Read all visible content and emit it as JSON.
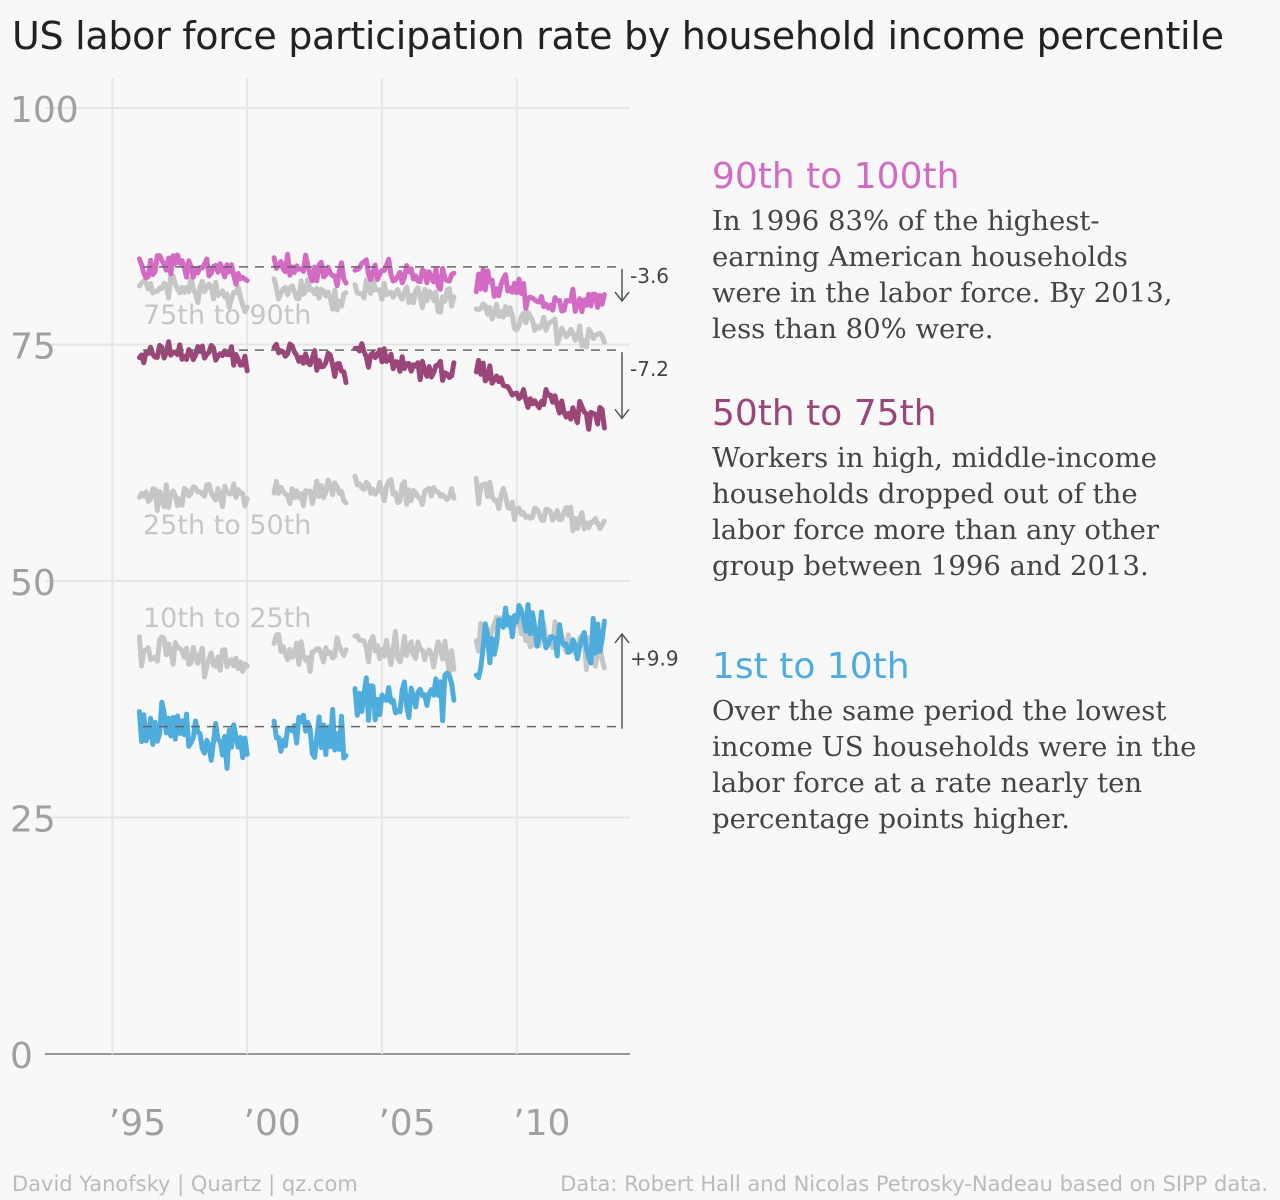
{
  "title": "US labor force participation rate by household income percentile",
  "chart_data": {
    "type": "line",
    "ylim": [
      0,
      100
    ],
    "yticks": [
      0,
      25,
      50,
      75,
      100
    ],
    "xlim": [
      1992.5,
      2014.2
    ],
    "xticks": [
      1995,
      2000,
      2005,
      2010
    ],
    "xtick_labels": [
      "’95",
      "’00",
      "’05",
      "’10"
    ],
    "grid": true,
    "colors": {
      "p90_100": "#d36bc4",
      "p50_75": "#9b4679",
      "p1_10": "#4fadde",
      "other": "#c6c6c6"
    },
    "segments": [
      [
        1996.0,
        2000.0
      ],
      [
        2001.0,
        2003.7
      ],
      [
        2004.0,
        2007.7
      ],
      [
        2008.5,
        2013.3
      ]
    ],
    "series": [
      {
        "key": "p90_100",
        "highlight": true,
        "color": "#d36bc4",
        "points": [
          [
            1996.0,
            83.2
          ],
          [
            1997.0,
            83.4
          ],
          [
            1998.0,
            82.8
          ],
          [
            1999.0,
            83.0
          ],
          [
            2000.0,
            81.5
          ],
          [
            2001.0,
            83.8
          ],
          [
            2002.0,
            83.1
          ],
          [
            2003.0,
            82.6
          ],
          [
            2003.7,
            82.0
          ],
          [
            2004.0,
            83.2
          ],
          [
            2005.0,
            83.0
          ],
          [
            2006.0,
            82.3
          ],
          [
            2007.0,
            81.8
          ],
          [
            2007.7,
            82.8
          ],
          [
            2008.5,
            81.8
          ],
          [
            2009.5,
            81.3
          ],
          [
            2010.5,
            80.0
          ],
          [
            2011.5,
            79.6
          ],
          [
            2012.5,
            79.4
          ],
          [
            2013.3,
            79.6
          ]
        ]
      },
      {
        "key": "p75_90",
        "label": "75th to 90th",
        "highlight": false,
        "color": "#c6c6c6",
        "points": [
          [
            1996.0,
            81.0
          ],
          [
            1997.0,
            81.2
          ],
          [
            1998.0,
            80.8
          ],
          [
            1999.0,
            80.7
          ],
          [
            2000.0,
            79.5
          ],
          [
            2001.0,
            81.5
          ],
          [
            2002.0,
            80.5
          ],
          [
            2003.0,
            80.1
          ],
          [
            2003.7,
            79.5
          ],
          [
            2004.0,
            81.5
          ],
          [
            2005.0,
            80.5
          ],
          [
            2006.0,
            80.2
          ],
          [
            2007.0,
            79.9
          ],
          [
            2007.7,
            80.0
          ],
          [
            2008.5,
            79.2
          ],
          [
            2009.5,
            78.3
          ],
          [
            2010.5,
            77.2
          ],
          [
            2011.5,
            76.5
          ],
          [
            2012.5,
            75.6
          ],
          [
            2013.3,
            75.8
          ]
        ]
      },
      {
        "key": "p50_75",
        "highlight": true,
        "color": "#9b4679",
        "points": [
          [
            1996.0,
            74.4
          ],
          [
            1997.0,
            74.3
          ],
          [
            1998.0,
            74.1
          ],
          [
            1999.0,
            73.9
          ],
          [
            2000.0,
            73.3
          ],
          [
            2001.0,
            74.8
          ],
          [
            2002.0,
            73.6
          ],
          [
            2003.0,
            73.0
          ],
          [
            2003.7,
            72.1
          ],
          [
            2004.0,
            74.5
          ],
          [
            2005.0,
            73.6
          ],
          [
            2006.0,
            72.9
          ],
          [
            2007.0,
            72.3
          ],
          [
            2007.7,
            72.0
          ],
          [
            2008.5,
            72.4
          ],
          [
            2009.5,
            70.5
          ],
          [
            2010.5,
            69.4
          ],
          [
            2011.5,
            68.5
          ],
          [
            2012.5,
            67.6
          ],
          [
            2013.3,
            67.2
          ]
        ]
      },
      {
        "key": "p25_50",
        "label": "25th to 50th",
        "highlight": false,
        "color": "#c6c6c6",
        "points": [
          [
            1996.0,
            59.0
          ],
          [
            1997.0,
            58.9
          ],
          [
            1998.0,
            59.0
          ],
          [
            1999.0,
            59.3
          ],
          [
            2000.0,
            59.5
          ],
          [
            2001.0,
            59.6
          ],
          [
            2002.0,
            58.7
          ],
          [
            2003.0,
            59.3
          ],
          [
            2003.7,
            59.0
          ],
          [
            2004.0,
            59.8
          ],
          [
            2005.0,
            59.4
          ],
          [
            2006.0,
            59.1
          ],
          [
            2007.0,
            59.0
          ],
          [
            2007.7,
            58.9
          ],
          [
            2008.5,
            59.8
          ],
          [
            2009.5,
            58.5
          ],
          [
            2010.5,
            57.2
          ],
          [
            2011.5,
            57.0
          ],
          [
            2012.5,
            56.4
          ],
          [
            2013.3,
            55.2
          ]
        ]
      },
      {
        "key": "p10_25",
        "label": "10th to 25th",
        "highlight": false,
        "color": "#c6c6c6",
        "points": [
          [
            1996.0,
            42.4
          ],
          [
            1997.0,
            42.5
          ],
          [
            1998.0,
            41.8
          ],
          [
            1999.0,
            41.5
          ],
          [
            2000.0,
            41.0
          ],
          [
            2001.0,
            43.2
          ],
          [
            2002.0,
            42.0
          ],
          [
            2003.0,
            42.2
          ],
          [
            2003.7,
            42.5
          ],
          [
            2004.0,
            43.1
          ],
          [
            2005.0,
            43.2
          ],
          [
            2006.0,
            42.8
          ],
          [
            2007.0,
            42.5
          ],
          [
            2007.7,
            41.2
          ],
          [
            2008.5,
            43.0
          ],
          [
            2009.5,
            46.0
          ],
          [
            2010.5,
            44.8
          ],
          [
            2011.5,
            43.8
          ],
          [
            2012.5,
            42.8
          ],
          [
            2013.3,
            41.5
          ]
        ]
      },
      {
        "key": "p1_10",
        "highlight": true,
        "color": "#4fadde",
        "points": [
          [
            1996.0,
            34.6
          ],
          [
            1997.0,
            34.8
          ],
          [
            1998.0,
            33.5
          ],
          [
            1999.0,
            32.8
          ],
          [
            2000.0,
            32.5
          ],
          [
            2001.0,
            33.2
          ],
          [
            2002.0,
            34.5
          ],
          [
            2003.0,
            34.0
          ],
          [
            2003.7,
            32.9
          ],
          [
            2004.0,
            37.5
          ],
          [
            2005.0,
            37.8
          ],
          [
            2006.0,
            38.2
          ],
          [
            2007.0,
            37.6
          ],
          [
            2007.7,
            38.2
          ],
          [
            2008.5,
            41.5
          ],
          [
            2009.5,
            45.8
          ],
          [
            2010.5,
            44.8
          ],
          [
            2011.5,
            44.0
          ],
          [
            2012.5,
            43.3
          ],
          [
            2013.3,
            44.4
          ]
        ]
      }
    ],
    "reference_lines": [
      {
        "key": "p90_100",
        "y": 83.2,
        "change": -3.6,
        "label": "-3.6"
      },
      {
        "key": "p50_75",
        "y": 74.4,
        "change": -7.2,
        "label": "-7.2"
      },
      {
        "key": "p1_10",
        "y": 34.6,
        "change": 9.9,
        "label": "+9.9"
      }
    ]
  },
  "annotations": [
    {
      "key": "p90_100",
      "heading": "90th to 100th",
      "color": "#d36bc4",
      "text": "In 1996 83% of the highest-earning American households were in the labor force. By 2013, less than 80% were."
    },
    {
      "key": "p50_75",
      "heading": "50th to 75th",
      "color": "#9b4679",
      "text": "Workers in high, middle-income households dropped out of the labor force more than any other group between 1996 and 2013."
    },
    {
      "key": "p1_10",
      "heading": "1st to 10th",
      "color": "#4fadde",
      "text": "Over the same period the lowest income US households were in the labor force at a rate nearly ten percentage points higher."
    }
  ],
  "footer": {
    "credit": "David Yanofsky | Quartz | qz.com",
    "source": "Data: Robert Hall and Nicolas Petrosky-Nadeau based on SIPP data."
  }
}
